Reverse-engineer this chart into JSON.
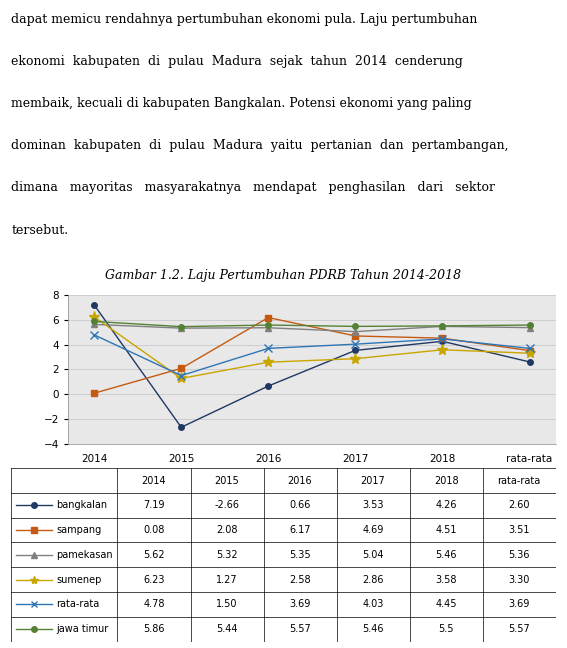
{
  "title": "Gambar 1.2. Laju Pertumbuhan PDRB Tahun 2014-2018",
  "paragraph_lines": [
    "dapat memicu rendahnya pertumbuhan ekonomi pula. Laju pertumbuhan",
    "ekonomi  kabupaten  di  pulau  Madura  sejak  tahun  2014  cenderung",
    "membaik, kecuali di kabupaten Bangkalan. Potensi ekonomi yang paling",
    "dominan  kabupaten  di  pulau  Madura  yaitu  pertanian  dan  pertambangan,",
    "dimana   mayoritas   masyarakatnya   mendapat   penghasilan   dari   sektor",
    "tersebut."
  ],
  "x_labels": [
    "2014",
    "2015",
    "2016",
    "2017",
    "2018",
    "rata-rata"
  ],
  "series": [
    {
      "name": "bangkalan",
      "values": [
        7.19,
        -2.66,
        0.66,
        3.53,
        4.26,
        2.6
      ],
      "color": "#1f3864",
      "marker": "o",
      "linestyle": "-"
    },
    {
      "name": "sampang",
      "values": [
        0.08,
        2.08,
        6.17,
        4.69,
        4.51,
        3.51
      ],
      "color": "#c55a11",
      "marker": "s",
      "linestyle": "-"
    },
    {
      "name": "pamekasan",
      "values": [
        5.62,
        5.32,
        5.35,
        5.04,
        5.46,
        5.36
      ],
      "color": "#808080",
      "marker": "^",
      "linestyle": "-"
    },
    {
      "name": "sumenep",
      "values": [
        6.23,
        1.27,
        2.58,
        2.86,
        3.58,
        3.3
      ],
      "color": "#c9a500",
      "marker": "*",
      "linestyle": "-"
    },
    {
      "name": "rata-rata",
      "values": [
        4.78,
        1.5,
        3.69,
        4.03,
        4.45,
        3.69
      ],
      "color": "#2e75b6",
      "marker": "x",
      "linestyle": "-"
    },
    {
      "name": "jawa timur",
      "values": [
        5.86,
        5.44,
        5.57,
        5.46,
        5.5,
        5.57
      ],
      "color": "#548235",
      "marker": "o",
      "linestyle": "-"
    }
  ],
  "ylim": [
    -4,
    8
  ],
  "yticks": [
    -4,
    -2,
    0,
    2,
    4,
    6,
    8
  ],
  "table_rows": [
    [
      "bangkalan",
      "7.19",
      "-2.66",
      "0.66",
      "3.53",
      "4.26",
      "2.60"
    ],
    [
      "sampang",
      "0.08",
      "2.08",
      "6.17",
      "4.69",
      "4.51",
      "3.51"
    ],
    [
      "pamekasan",
      "5.62",
      "5.32",
      "5.35",
      "5.04",
      "5.46",
      "5.36"
    ],
    [
      "sumenep",
      "6.23",
      "1.27",
      "2.58",
      "2.86",
      "3.58",
      "3.30"
    ],
    [
      "rata-rata",
      "4.78",
      "1.50",
      "3.69",
      "4.03",
      "4.45",
      "3.69"
    ],
    [
      "jawa timur",
      "5.86",
      "5.44",
      "5.57",
      "5.46",
      "5.5",
      "5.57"
    ]
  ],
  "col_labels": [
    "2014",
    "2015",
    "2016",
    "2017",
    "2018",
    "rata-rata"
  ],
  "background_color": "#ffffff",
  "plot_bg_color": "#e8e8e8"
}
